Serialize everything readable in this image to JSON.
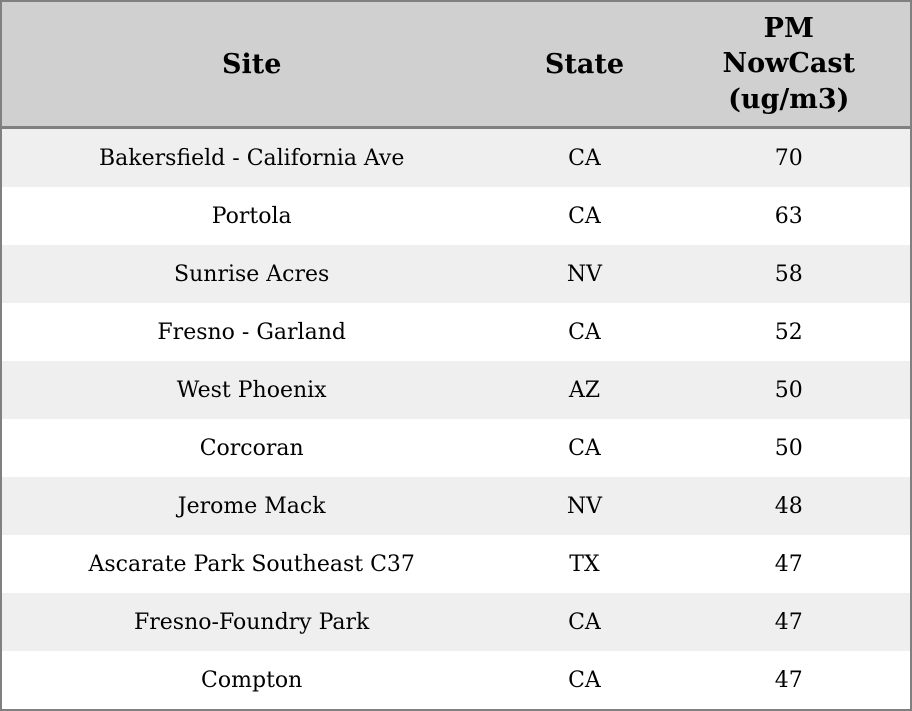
{
  "colors": {
    "border": "#808080",
    "header_bg": "#d0d0d0",
    "row_alt_bg": "#efefef",
    "row_bg": "#ffffff",
    "text": "#000000"
  },
  "table": {
    "header": {
      "site": "Site",
      "state": "State",
      "pm": "PM NowCast (ug/m3)"
    },
    "rows": [
      {
        "site": "Bakersfield - California Ave",
        "state": "CA",
        "pm": "70"
      },
      {
        "site": "Portola",
        "state": "CA",
        "pm": "63"
      },
      {
        "site": "Sunrise Acres",
        "state": "NV",
        "pm": "58"
      },
      {
        "site": "Fresno - Garland",
        "state": "CA",
        "pm": "52"
      },
      {
        "site": "West Phoenix",
        "state": "AZ",
        "pm": "50"
      },
      {
        "site": "Corcoran",
        "state": "CA",
        "pm": "50"
      },
      {
        "site": "Jerome Mack",
        "state": "NV",
        "pm": "48"
      },
      {
        "site": "Ascarate Park Southeast C37",
        "state": "TX",
        "pm": "47"
      },
      {
        "site": "Fresno-Foundry Park",
        "state": "CA",
        "pm": "47"
      },
      {
        "site": "Compton",
        "state": "CA",
        "pm": "47"
      }
    ]
  }
}
